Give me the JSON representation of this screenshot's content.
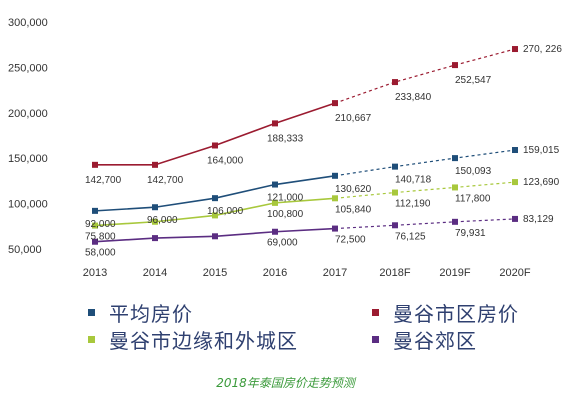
{
  "chart_data": {
    "type": "line",
    "categories": [
      "2013",
      "2014",
      "2015",
      "2016",
      "2017",
      "2018F",
      "2019F",
      "2020F"
    ],
    "ylim": [
      50000,
      300000
    ],
    "yticks": [
      "300,000",
      "250,000",
      "200,000",
      "150,000",
      "100,000",
      "50,000"
    ],
    "ytick_values": [
      300000,
      250000,
      200000,
      150000,
      100000,
      50000
    ],
    "grid": false,
    "legend_position": "bottom",
    "forecast_from_index": 4,
    "series": [
      {
        "name": "平均房价",
        "color": "#1f4e79",
        "values": [
          92000,
          96000,
          106000,
          121000,
          130620,
          140718,
          150093,
          159015
        ],
        "labels": [
          "92,000",
          "96,000",
          "106,000",
          "121,000",
          "130,620",
          "140,718",
          "150,093",
          "159,015"
        ]
      },
      {
        "name": "曼谷市区房价",
        "color": "#9b1b30",
        "values": [
          142700,
          142700,
          164000,
          188333,
          210667,
          233840,
          252547,
          270226
        ],
        "labels": [
          "142,700",
          "142,700",
          "164,000",
          "188,333",
          "210,667",
          "233,840",
          "252,547",
          "270, 226"
        ]
      },
      {
        "name": "曼谷市边缘和外城区",
        "color": "#a8c83c",
        "values": [
          75800,
          80000,
          87000,
          100800,
          105840,
          112190,
          117800,
          123690
        ],
        "labels": [
          "75,800",
          "",
          "",
          "100,800",
          "105,840",
          "112,190",
          "117,800",
          "123,690"
        ]
      },
      {
        "name": "曼谷郊区",
        "color": "#5b2d82",
        "values": [
          58000,
          62000,
          64000,
          69000,
          72500,
          76125,
          79931,
          83129
        ],
        "labels": [
          "58,000",
          "",
          "",
          "69,000",
          "72,500",
          "76,125",
          "79,931",
          "83,129"
        ]
      }
    ]
  },
  "caption": "2018年泰国房价走势预测",
  "caption_color": "#3a9a3a"
}
